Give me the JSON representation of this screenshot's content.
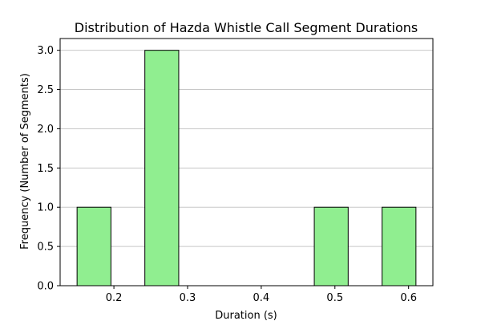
{
  "chart_data": {
    "type": "bar",
    "title": "Distribution of Hazda Whistle Call Segment Durations",
    "xlabel": "Duration (s)",
    "ylabel": "Frequency (Number of Segments)",
    "bins": [
      {
        "start": 0.15,
        "end": 0.196,
        "count": 1
      },
      {
        "start": 0.196,
        "end": 0.242,
        "count": 0
      },
      {
        "start": 0.242,
        "end": 0.288,
        "count": 3
      },
      {
        "start": 0.288,
        "end": 0.334,
        "count": 0
      },
      {
        "start": 0.334,
        "end": 0.38,
        "count": 0
      },
      {
        "start": 0.38,
        "end": 0.426,
        "count": 0
      },
      {
        "start": 0.426,
        "end": 0.472,
        "count": 0
      },
      {
        "start": 0.472,
        "end": 0.518,
        "count": 1
      },
      {
        "start": 0.518,
        "end": 0.564,
        "count": 0
      },
      {
        "start": 0.564,
        "end": 0.61,
        "count": 1
      }
    ],
    "xlim": [
      0.127,
      0.633
    ],
    "ylim": [
      0,
      3.15
    ],
    "xticks": [
      0.2,
      0.3,
      0.4,
      0.5,
      0.6
    ],
    "xtick_labels": [
      "0.2",
      "0.3",
      "0.4",
      "0.5",
      "0.6"
    ],
    "yticks": [
      0.0,
      0.5,
      1.0,
      1.5,
      2.0,
      2.5,
      3.0
    ],
    "ytick_labels": [
      "0.0",
      "0.5",
      "1.0",
      "1.5",
      "2.0",
      "2.5",
      "3.0"
    ],
    "grid": "y",
    "bar_color": "#90ee90",
    "edge_color": "#000000",
    "grid_color": "#c8c8c8"
  }
}
